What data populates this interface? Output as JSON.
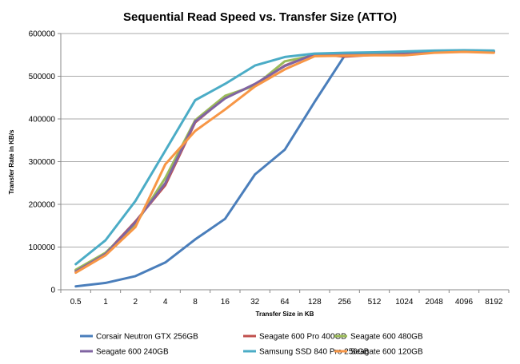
{
  "chart_data": {
    "type": "line",
    "title": "Sequential Read Speed vs. Transfer Size (ATTO)",
    "xlabel": "Transfer Size in KB",
    "ylabel": "Transfer Rate in KB/s",
    "ylim": [
      0,
      600000
    ],
    "yticks": [
      "0",
      "100000",
      "200000",
      "300000",
      "400000",
      "500000",
      "600000"
    ],
    "grid": true,
    "legend_position": "bottom",
    "categories": [
      "0.5",
      "1",
      "2",
      "4",
      "8",
      "16",
      "32",
      "64",
      "128",
      "256",
      "512",
      "1024",
      "2048",
      "4096",
      "8192"
    ],
    "series": [
      {
        "name": "Corsair Neutron GTX 256GB",
        "color": "#4a7ebb",
        "values": [
          8000,
          16000,
          32000,
          64000,
          118000,
          166000,
          270000,
          328000,
          440000,
          548000,
          553000,
          555000,
          558000,
          558000,
          557000
        ]
      },
      {
        "name": "Seagate 600 Pro 400GB",
        "color": "#c0504d",
        "values": [
          45000,
          85000,
          160000,
          245000,
          392000,
          450000,
          480000,
          525000,
          552000,
          546000,
          550000,
          553000,
          557000,
          560000,
          558000
        ]
      },
      {
        "name": "Seagate 600 480GB",
        "color": "#9bbb59",
        "values": [
          47000,
          87000,
          153000,
          262000,
          397000,
          454000,
          478000,
          535000,
          549000,
          550000,
          551000,
          552000,
          558000,
          559000,
          558000
        ]
      },
      {
        "name": "Seagate 600 240GB",
        "color": "#8064a2",
        "values": [
          43000,
          84000,
          158000,
          250000,
          394000,
          448000,
          482000,
          524000,
          552000,
          550000,
          550000,
          552000,
          556000,
          558000,
          557000
        ]
      },
      {
        "name": "Samsung SSD 840 Pro 256GB",
        "color": "#4bacc6",
        "values": [
          60000,
          116000,
          208000,
          326000,
          444000,
          482000,
          525000,
          545000,
          553000,
          555000,
          556000,
          558000,
          560000,
          561000,
          560000
        ]
      },
      {
        "name": "Seagate 600 120GB",
        "color": "#f79646",
        "values": [
          40000,
          81000,
          147000,
          294000,
          372000,
          422000,
          476000,
          516000,
          547000,
          548000,
          549000,
          549000,
          555000,
          557000,
          555000
        ]
      }
    ]
  }
}
